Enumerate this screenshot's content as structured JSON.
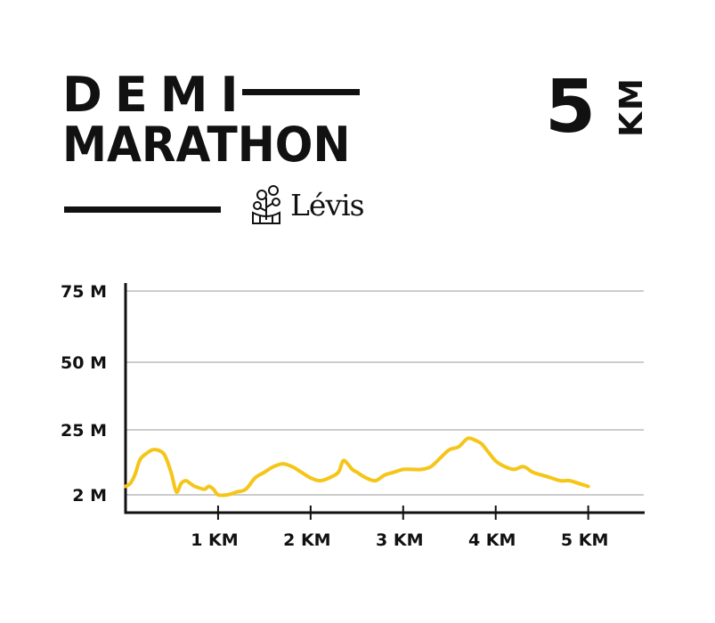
{
  "header": {
    "title_line1": "DEMI",
    "title_line2": "MARATHON",
    "distance_number": "5",
    "distance_unit": "KM",
    "logo_text": "Lévis"
  },
  "colors": {
    "line": "#F5C518",
    "text": "#111111",
    "grid": "#BBBBBB"
  },
  "chart_data": {
    "type": "line",
    "title": "",
    "xlabel": "",
    "ylabel": "",
    "xlim": [
      0,
      5.6
    ],
    "ylim": [
      0,
      78
    ],
    "x_ticks": [
      1,
      2,
      3,
      4,
      5
    ],
    "x_tick_labels": [
      "1 KM",
      "2 KM",
      "3 KM",
      "4 KM",
      "5 KM"
    ],
    "y_ticks": [
      2,
      25,
      50,
      75
    ],
    "y_tick_labels": [
      "2 M",
      "25 M",
      "50 M",
      "75 M"
    ],
    "grid": "horizontal",
    "series": [
      {
        "values_x": [
          0.0,
          0.05,
          0.1,
          0.15,
          0.2,
          0.3,
          0.4,
          0.45,
          0.5,
          0.55,
          0.6,
          0.65,
          0.7,
          0.75,
          0.85,
          0.9,
          0.95,
          1.0,
          1.1,
          1.2,
          1.3,
          1.4,
          1.5,
          1.6,
          1.7,
          1.8,
          1.9,
          2.0,
          2.1,
          2.2,
          2.3,
          2.35,
          2.4,
          2.45,
          2.5,
          2.6,
          2.7,
          2.8,
          2.9,
          3.0,
          3.1,
          3.2,
          3.3,
          3.4,
          3.5,
          3.6,
          3.7,
          3.8,
          3.85,
          3.9,
          4.0,
          4.1,
          4.2,
          4.3,
          4.4,
          4.5,
          4.6,
          4.7,
          4.8,
          4.9,
          5.0
        ],
        "values_y": [
          5,
          6,
          9,
          14,
          16,
          18,
          17,
          14,
          9,
          3,
          6,
          7,
          6,
          5,
          4,
          5,
          4,
          2,
          2,
          3,
          4,
          8,
          10,
          12,
          13,
          12,
          10,
          8,
          7,
          8,
          10,
          14,
          13,
          11,
          10,
          8,
          7,
          9,
          10,
          11,
          11,
          11,
          12,
          15,
          18,
          19,
          22,
          21,
          20,
          18,
          14,
          12,
          11,
          12,
          10,
          9,
          8,
          7,
          7,
          6,
          5
        ]
      }
    ]
  }
}
